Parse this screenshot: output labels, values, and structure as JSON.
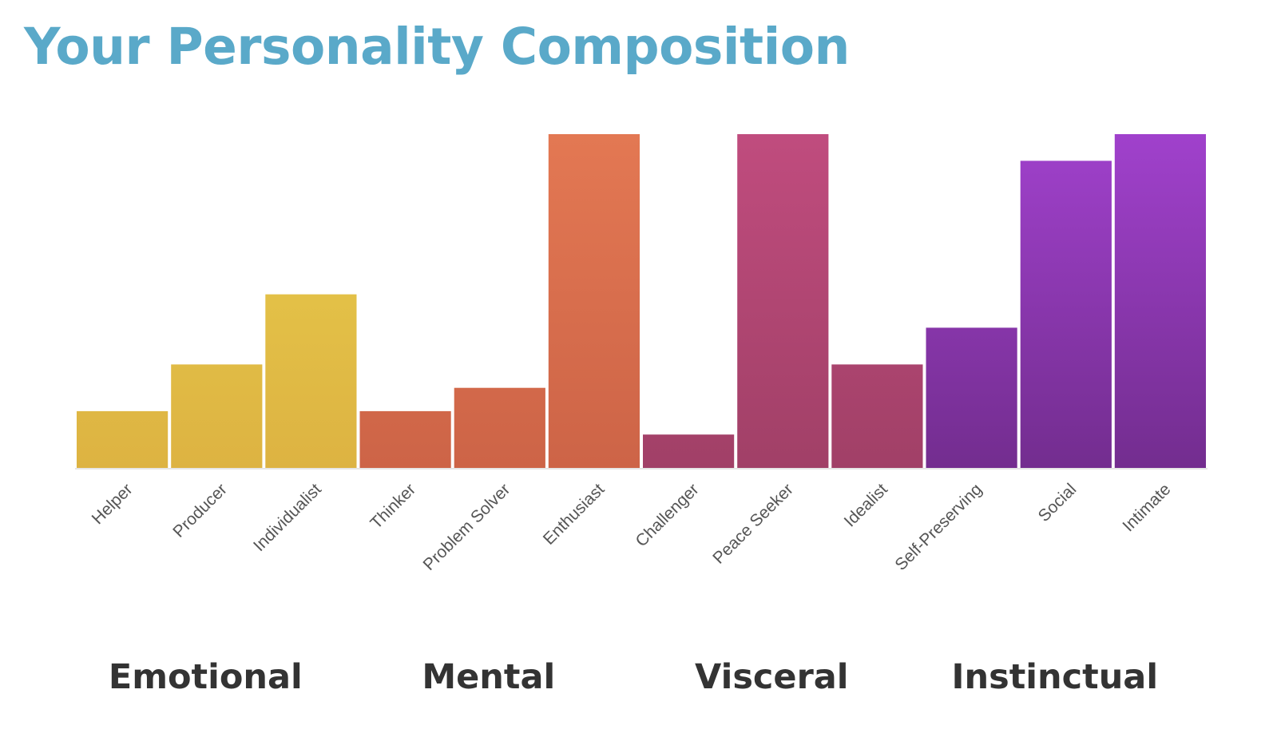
{
  "title": "Your Personality Composition",
  "chart_data": {
    "type": "bar",
    "title": "Your Personality Composition",
    "xlabel": "",
    "ylabel": "",
    "ylim": [
      0,
      100
    ],
    "grid": false,
    "categories": [
      "Helper",
      "Producer",
      "Individualist",
      "Thinker",
      "Problem Solver",
      "Enthusiast",
      "Challenger",
      "Peace Seeker",
      "Idealist",
      "Self-Preserving",
      "Social",
      "Intimate"
    ],
    "values": [
      17,
      31,
      52,
      17,
      24,
      100,
      10,
      100,
      31,
      42,
      92,
      100
    ],
    "groups": [
      {
        "name": "Emotional",
        "categories": [
          "Helper",
          "Producer",
          "Individualist"
        ],
        "color_top": "#e9cd4c",
        "color_bottom": "#ddb342"
      },
      {
        "name": "Mental",
        "categories": [
          "Thinker",
          "Problem Solver",
          "Enthusiast"
        ],
        "color_top": "#e37853",
        "color_bottom": "#cd6447"
      },
      {
        "name": "Visceral",
        "categories": [
          "Challenger",
          "Peace Seeker",
          "Idealist"
        ],
        "color_top": "#c04c7e",
        "color_bottom": "#a14067"
      },
      {
        "name": "Instinctual",
        "categories": [
          "Self-Preserving",
          "Social",
          "Intimate"
        ],
        "color_top": "#a041cc",
        "color_bottom": "#732d8f"
      }
    ],
    "colors": {
      "title": "#5aa9c9",
      "tick_label": "#555555",
      "group_label": "#333333",
      "baseline": "#e6e6e6"
    }
  }
}
